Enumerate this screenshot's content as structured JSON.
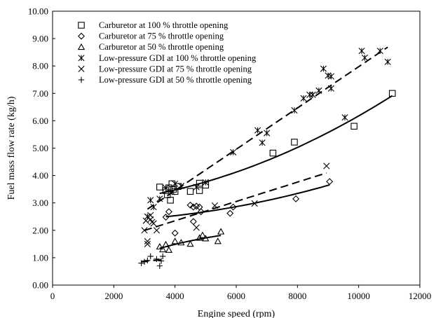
{
  "chart_data": {
    "type": "scatter",
    "title": "",
    "xlabel": "Engine speed (rpm)",
    "ylabel": "Fuel mass flow rate (kg/h)",
    "xlim": [
      0,
      12000
    ],
    "ylim": [
      0,
      10
    ],
    "x_ticks": [
      "0",
      "2000",
      "4000",
      "6000",
      "8000",
      "10000",
      "12000"
    ],
    "y_ticks": [
      "0.00",
      "1.00",
      "2.00",
      "3.00",
      "4.00",
      "5.00",
      "6.00",
      "7.00",
      "8.00",
      "9.00",
      "10.00"
    ],
    "legend_position": "top-left",
    "series": [
      {
        "name": "Carburetor at 100 % throttle opening",
        "marker": "square",
        "points": [
          [
            3500,
            3.58
          ],
          [
            3700,
            3.45
          ],
          [
            3750,
            3.3
          ],
          [
            3800,
            3.55
          ],
          [
            3850,
            3.1
          ],
          [
            3900,
            3.7
          ],
          [
            3950,
            3.5
          ],
          [
            4000,
            3.42
          ],
          [
            4100,
            3.6
          ],
          [
            4500,
            3.42
          ],
          [
            4800,
            3.72
          ],
          [
            4800,
            3.45
          ],
          [
            5000,
            3.65
          ],
          [
            7200,
            4.82
          ],
          [
            7900,
            5.22
          ],
          [
            9850,
            5.8
          ],
          [
            11100,
            7.0
          ]
        ],
        "trend": "curve"
      },
      {
        "name": "Carburetor at 75 % throttle opening",
        "marker": "diamond",
        "points": [
          [
            3700,
            2.48
          ],
          [
            3800,
            2.68
          ],
          [
            4000,
            1.9
          ],
          [
            4500,
            2.92
          ],
          [
            4600,
            2.85
          ],
          [
            4600,
            2.32
          ],
          [
            4700,
            2.88
          ],
          [
            4800,
            2.85
          ],
          [
            4850,
            2.68
          ],
          [
            5800,
            2.62
          ],
          [
            5900,
            2.85
          ],
          [
            7950,
            3.15
          ],
          [
            9050,
            3.78
          ]
        ],
        "trend": "curve"
      },
      {
        "name": "Carburetor at 50 % throttle opening",
        "marker": "triangle",
        "points": [
          [
            3500,
            1.4
          ],
          [
            3600,
            1.3
          ],
          [
            3700,
            1.48
          ],
          [
            3800,
            1.28
          ],
          [
            4000,
            1.6
          ],
          [
            4200,
            1.55
          ],
          [
            4500,
            1.5
          ],
          [
            4800,
            1.72
          ],
          [
            4900,
            1.82
          ],
          [
            5000,
            1.7
          ],
          [
            5400,
            1.6
          ],
          [
            5500,
            1.95
          ]
        ],
        "trend": "curve"
      },
      {
        "name": "Low-pressure GDI at 100 % throttle opening",
        "marker": "asterisk",
        "points": [
          [
            3100,
            2.5
          ],
          [
            3200,
            3.1
          ],
          [
            3300,
            2.85
          ],
          [
            3500,
            3.15
          ],
          [
            3700,
            3.55
          ],
          [
            3900,
            3.4
          ],
          [
            4000,
            3.7
          ],
          [
            4200,
            3.62
          ],
          [
            4700,
            3.58
          ],
          [
            5000,
            3.75
          ],
          [
            5900,
            4.85
          ],
          [
            6700,
            5.65
          ],
          [
            6850,
            5.2
          ],
          [
            7000,
            5.55
          ],
          [
            7900,
            6.38
          ],
          [
            8200,
            6.82
          ],
          [
            8400,
            6.95
          ],
          [
            8500,
            6.95
          ],
          [
            8700,
            7.1
          ],
          [
            8850,
            7.9
          ],
          [
            9000,
            7.65
          ],
          [
            9100,
            7.18
          ],
          [
            9100,
            7.62
          ],
          [
            9550,
            6.12
          ],
          [
            10100,
            8.55
          ],
          [
            10200,
            8.3
          ],
          [
            10700,
            8.55
          ],
          [
            10950,
            8.15
          ]
        ],
        "trend": "line"
      },
      {
        "name": "Low-pressure GDI at 75 % throttle opening",
        "marker": "x",
        "points": [
          [
            3000,
            2.0
          ],
          [
            3050,
            2.35
          ],
          [
            3200,
            2.4
          ],
          [
            3200,
            2.55
          ],
          [
            3250,
            2.3
          ],
          [
            3300,
            2.25
          ],
          [
            3400,
            2.0
          ],
          [
            3100,
            1.6
          ],
          [
            3100,
            1.5
          ],
          [
            4700,
            2.1
          ],
          [
            5300,
            2.9
          ],
          [
            6600,
            2.98
          ],
          [
            8950,
            4.35
          ]
        ],
        "trend": "line"
      },
      {
        "name": "Low-pressure GDI at 50 % throttle opening",
        "marker": "plus",
        "points": [
          [
            2900,
            0.8
          ],
          [
            3000,
            0.85
          ],
          [
            3100,
            0.9
          ],
          [
            3200,
            1.05
          ],
          [
            3400,
            0.95
          ],
          [
            3500,
            0.7
          ],
          [
            3550,
            0.88
          ],
          [
            3600,
            1.05
          ]
        ],
        "trend": "line"
      }
    ]
  }
}
